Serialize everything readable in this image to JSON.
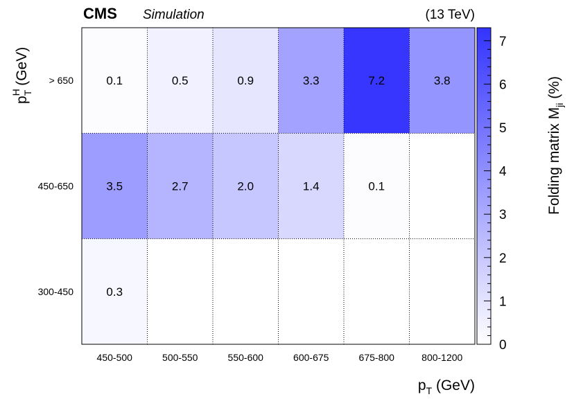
{
  "chart_data": {
    "type": "heatmap",
    "header": {
      "experiment": "CMS",
      "subtitle": "Simulation",
      "energy": "(13 TeV)"
    },
    "x_categories": [
      "450-500",
      "500-550",
      "550-600",
      "600-675",
      "675-800",
      "800-1200"
    ],
    "y_categories": [
      "300-450",
      "450-650",
      "> 650"
    ],
    "xlabel": {
      "main": "p",
      "sub": "T",
      "unit": "(GeV)"
    },
    "ylabel": {
      "main": "p",
      "sup": "H",
      "sub": "T",
      "unit": "(GeV)"
    },
    "colorbar": {
      "label_main": "Folding matrix M",
      "label_sub": "ji",
      "label_unit": "(%)",
      "min": 0,
      "max": 7.3,
      "ticks": [
        "0",
        "1",
        "2",
        "3",
        "4",
        "5",
        "6",
        "7"
      ],
      "color_low": "#ffffff",
      "color_high": "#3333ff"
    },
    "cells": [
      {
        "row": 2,
        "col": 0,
        "value": 0.1,
        "label": "0.1"
      },
      {
        "row": 2,
        "col": 1,
        "value": 0.5,
        "label": "0.5"
      },
      {
        "row": 2,
        "col": 2,
        "value": 0.9,
        "label": "0.9"
      },
      {
        "row": 2,
        "col": 3,
        "value": 3.3,
        "label": "3.3"
      },
      {
        "row": 2,
        "col": 4,
        "value": 7.2,
        "label": "7.2"
      },
      {
        "row": 2,
        "col": 5,
        "value": 3.8,
        "label": "3.8"
      },
      {
        "row": 1,
        "col": 0,
        "value": 3.5,
        "label": "3.5"
      },
      {
        "row": 1,
        "col": 1,
        "value": 2.7,
        "label": "2.7"
      },
      {
        "row": 1,
        "col": 2,
        "value": 2.0,
        "label": "2.0"
      },
      {
        "row": 1,
        "col": 3,
        "value": 1.4,
        "label": "1.4"
      },
      {
        "row": 1,
        "col": 4,
        "value": 0.1,
        "label": "0.1"
      },
      {
        "row": 0,
        "col": 0,
        "value": 0.3,
        "label": "0.3"
      }
    ]
  }
}
